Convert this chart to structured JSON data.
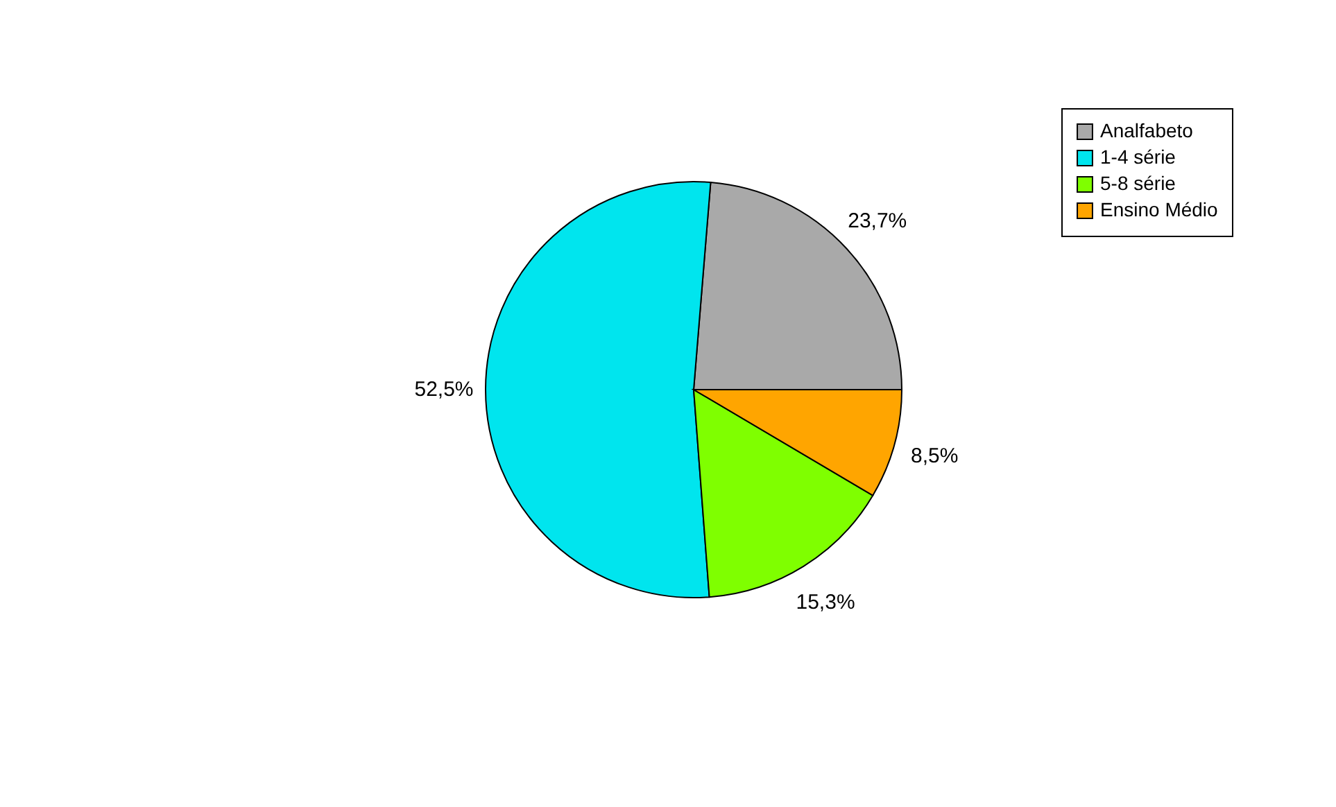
{
  "chart_data": {
    "type": "pie",
    "categories": [
      "Analfabeto",
      "1-4 série",
      "5-8 série",
      "Ensino Médio"
    ],
    "values": [
      23.7,
      52.5,
      15.3,
      8.5
    ],
    "colors": [
      "#a9a9a9",
      "#00e5ee",
      "#7fff00",
      "#ffa500"
    ],
    "value_labels": [
      "23,7%",
      "52,5%",
      "15,3%",
      "8,5%"
    ],
    "legend": "top right"
  }
}
